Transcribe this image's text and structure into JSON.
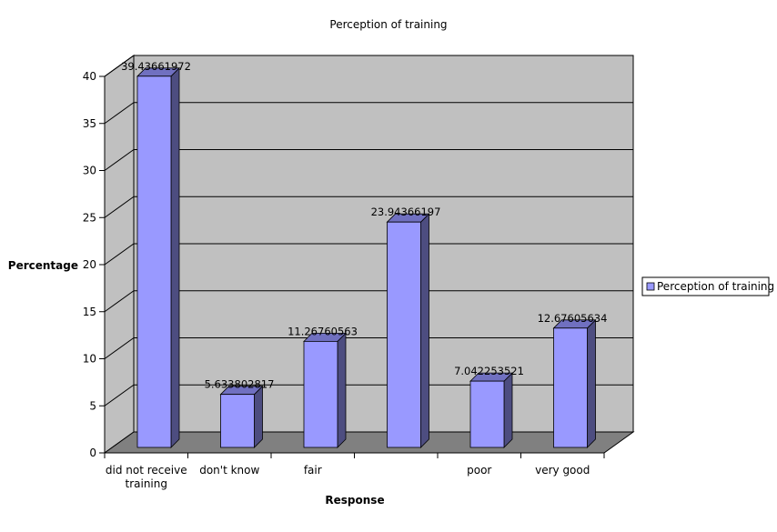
{
  "chart_data": {
    "type": "bar",
    "title": "Perception of training",
    "xlabel": "Response",
    "ylabel": "Percentage",
    "categories": [
      {
        "line1": "did not receive",
        "line2": "training"
      },
      {
        "line1": "don't know",
        "line2": ""
      },
      {
        "line1": "fair",
        "line2": ""
      },
      {
        "line1": "",
        "line2": ""
      },
      {
        "line1": "poor",
        "line2": ""
      },
      {
        "line1": "very good",
        "line2": ""
      }
    ],
    "values": [
      39.43661972,
      5.633802817,
      11.26760563,
      23.94366197,
      7.042253521,
      12.67605634
    ],
    "data_labels": [
      "39.43661972",
      "5.633802817",
      "11.26760563",
      "23.94366197",
      "7.042253521",
      "12.67605634"
    ],
    "ylim": [
      0,
      40
    ],
    "yticks": [
      "0",
      "5",
      "10",
      "15",
      "20",
      "25",
      "30",
      "35",
      "40"
    ],
    "grid": true,
    "legend": {
      "position": "right",
      "entries": [
        "Perception of training"
      ]
    },
    "colors": {
      "bar_front": "#9999ff",
      "bar_side": "#4d4d80",
      "bar_top": "#7070c0",
      "back_wall": "#c0c0c0",
      "side_wall": "#c0c0c0",
      "floor": "#808080"
    }
  }
}
